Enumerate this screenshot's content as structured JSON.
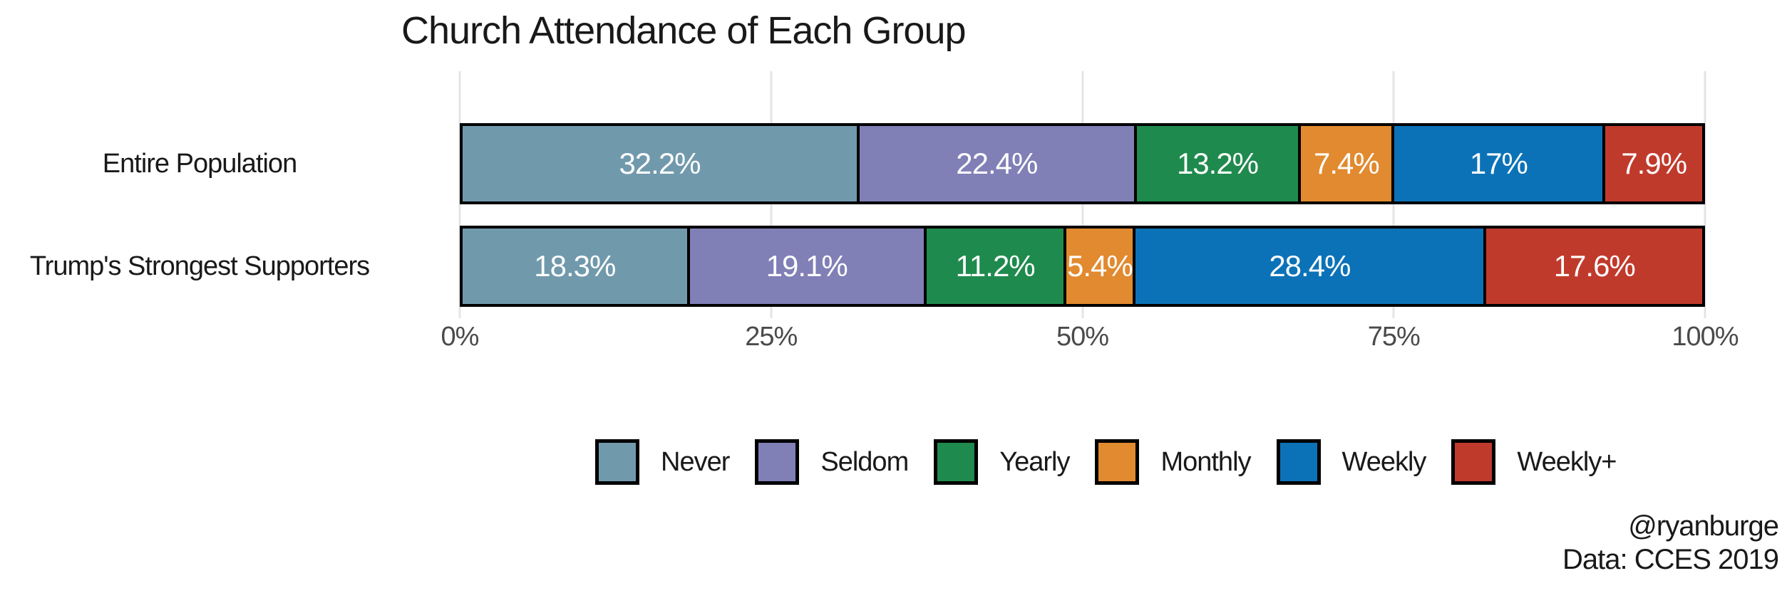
{
  "title": "Church Attendance of Each Group",
  "caption": {
    "line1": "@ryanburge",
    "line2": "Data: CCES 2019"
  },
  "chart_data": {
    "type": "bar",
    "orientation": "horizontal-stacked",
    "title": "Church Attendance of Each Group",
    "categories": [
      "Entire Population",
      "Trump's Strongest Supporters"
    ],
    "series": [
      {
        "name": "Never",
        "color": "#7199AC",
        "values": [
          32.2,
          18.3
        ],
        "labels": [
          "32.2%",
          "18.3%"
        ]
      },
      {
        "name": "Seldom",
        "color": "#807FB6",
        "values": [
          22.4,
          19.1
        ],
        "labels": [
          "22.4%",
          "19.1%"
        ]
      },
      {
        "name": "Yearly",
        "color": "#1F8A4D",
        "values": [
          13.2,
          11.2
        ],
        "labels": [
          "13.2%",
          "11.2%"
        ]
      },
      {
        "name": "Monthly",
        "color": "#E18A2F",
        "values": [
          7.4,
          5.4
        ],
        "labels": [
          "7.4%",
          "5.4%"
        ]
      },
      {
        "name": "Weekly",
        "color": "#0C72B7",
        "values": [
          17,
          28.4
        ],
        "labels": [
          "17%",
          "28.4%"
        ]
      },
      {
        "name": "Weekly+",
        "color": "#C03A2C",
        "values": [
          7.9,
          17.6
        ],
        "labels": [
          "7.9%",
          "17.6%"
        ]
      }
    ],
    "x_axis": {
      "tick_labels": [
        "0%",
        "25%",
        "50%",
        "75%",
        "100%"
      ],
      "tick_values": [
        0,
        25,
        50,
        75,
        100
      ],
      "range": [
        0,
        100
      ]
    },
    "bar_outline_color": "#000000",
    "value_label_color": "#ffffff",
    "grid": "major-vertical",
    "gridline_color": "#e4e4e4",
    "legend_position": "bottom"
  }
}
